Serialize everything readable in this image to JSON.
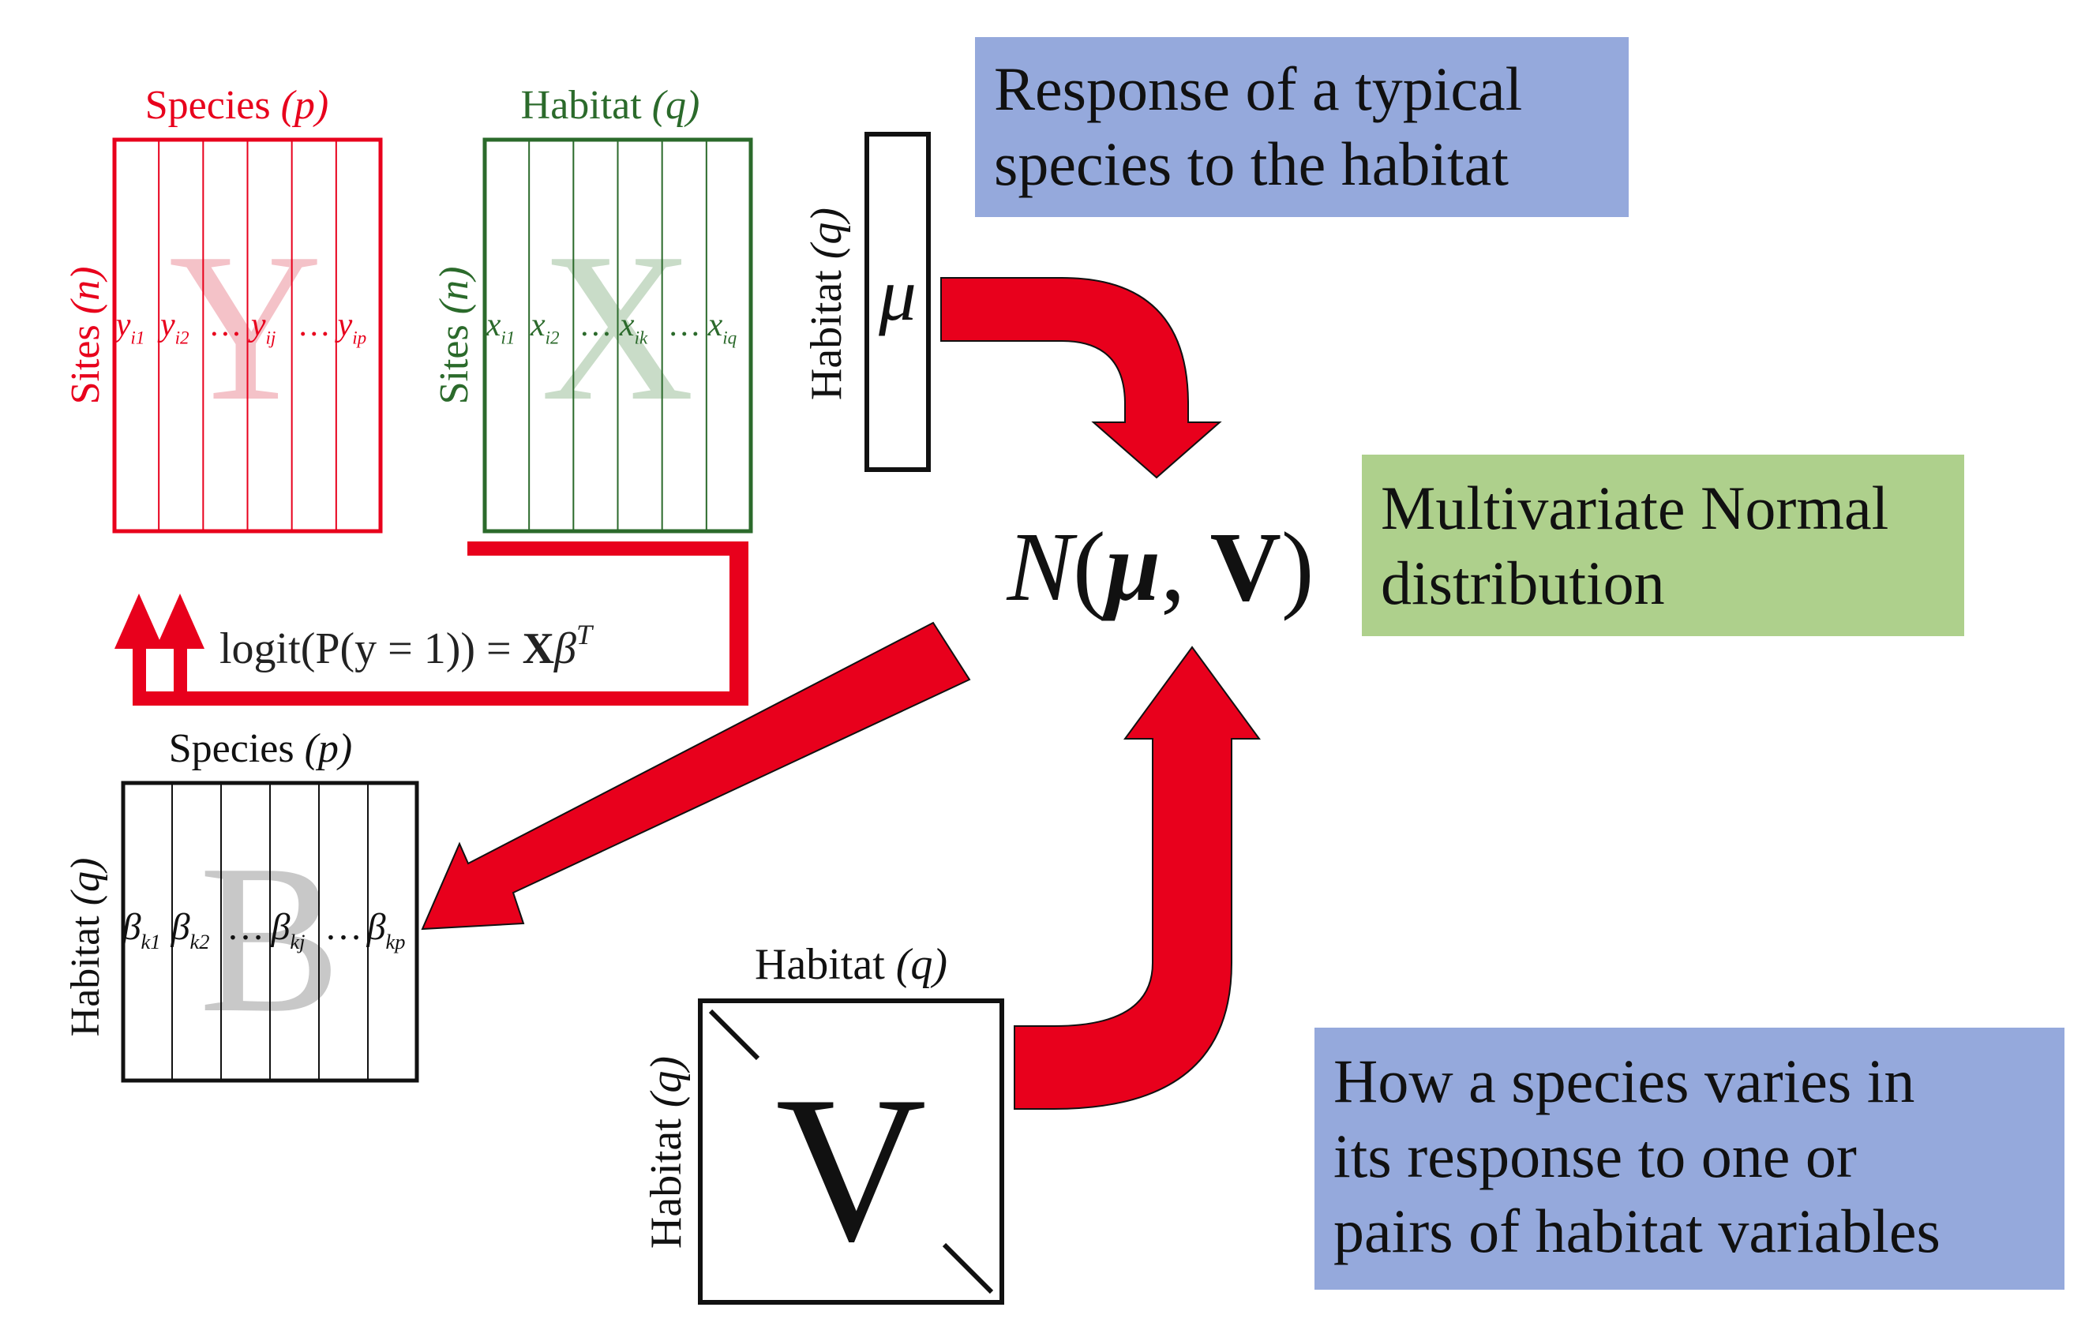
{
  "colors": {
    "red": "#e8001c",
    "green": "#2b6a2b",
    "black": "#111111",
    "blue_box": "#95a9dc",
    "green_box": "#aed08c",
    "y_watermark": "#f4c2c8",
    "x_watermark": "#c9dcc8",
    "b_watermark": "#c8c8c8"
  },
  "y_matrix": {
    "title": "Species",
    "title_var": "(p)",
    "side_label": "Sites",
    "side_var": "(n)",
    "letter": "Y",
    "cells": [
      "y",
      "y",
      "…",
      "y",
      "…",
      "y"
    ],
    "subs": [
      "i1",
      "i2",
      "",
      "ij",
      "",
      "ip"
    ]
  },
  "x_matrix": {
    "title": "Habitat",
    "title_var": "(q)",
    "side_label": "Sites",
    "side_var": "(n)",
    "letter": "X",
    "cells": [
      "x",
      "x",
      "…",
      "x",
      "…",
      "x"
    ],
    "subs": [
      "i1",
      "i2",
      "",
      "ik",
      "",
      "iq"
    ]
  },
  "b_matrix": {
    "title": "Species",
    "title_var": "(p)",
    "side_label": "Habitat",
    "side_var": "(q)",
    "letter": "B",
    "cells": [
      "β",
      "β",
      "…",
      "β",
      "…",
      "β"
    ],
    "subs": [
      "k1",
      "k2",
      "",
      "kj",
      "",
      "kp"
    ]
  },
  "mu_vector": {
    "side_label": "Habitat",
    "side_var": "(q)",
    "symbol": "μ"
  },
  "v_matrix": {
    "title": "Habitat",
    "title_var": "(q)",
    "side_label": "Habitat",
    "side_var": "(q)",
    "letter": "V"
  },
  "equation": {
    "logit": "logit",
    "lhs": "(P(y = 1)) =",
    "bold": "X",
    "beta": "β",
    "sup": "T"
  },
  "distribution": {
    "n": "N",
    "open": "(",
    "mu": "μ",
    "comma": ",",
    "v": "V",
    "close": ")"
  },
  "boxes": {
    "response": [
      "Response of a typical",
      "species to the habitat"
    ],
    "mvn": [
      "Multivariate Normal",
      "distribution"
    ],
    "variation": [
      "How a species varies in",
      "its response to one or",
      "pairs of habitat variables"
    ]
  }
}
